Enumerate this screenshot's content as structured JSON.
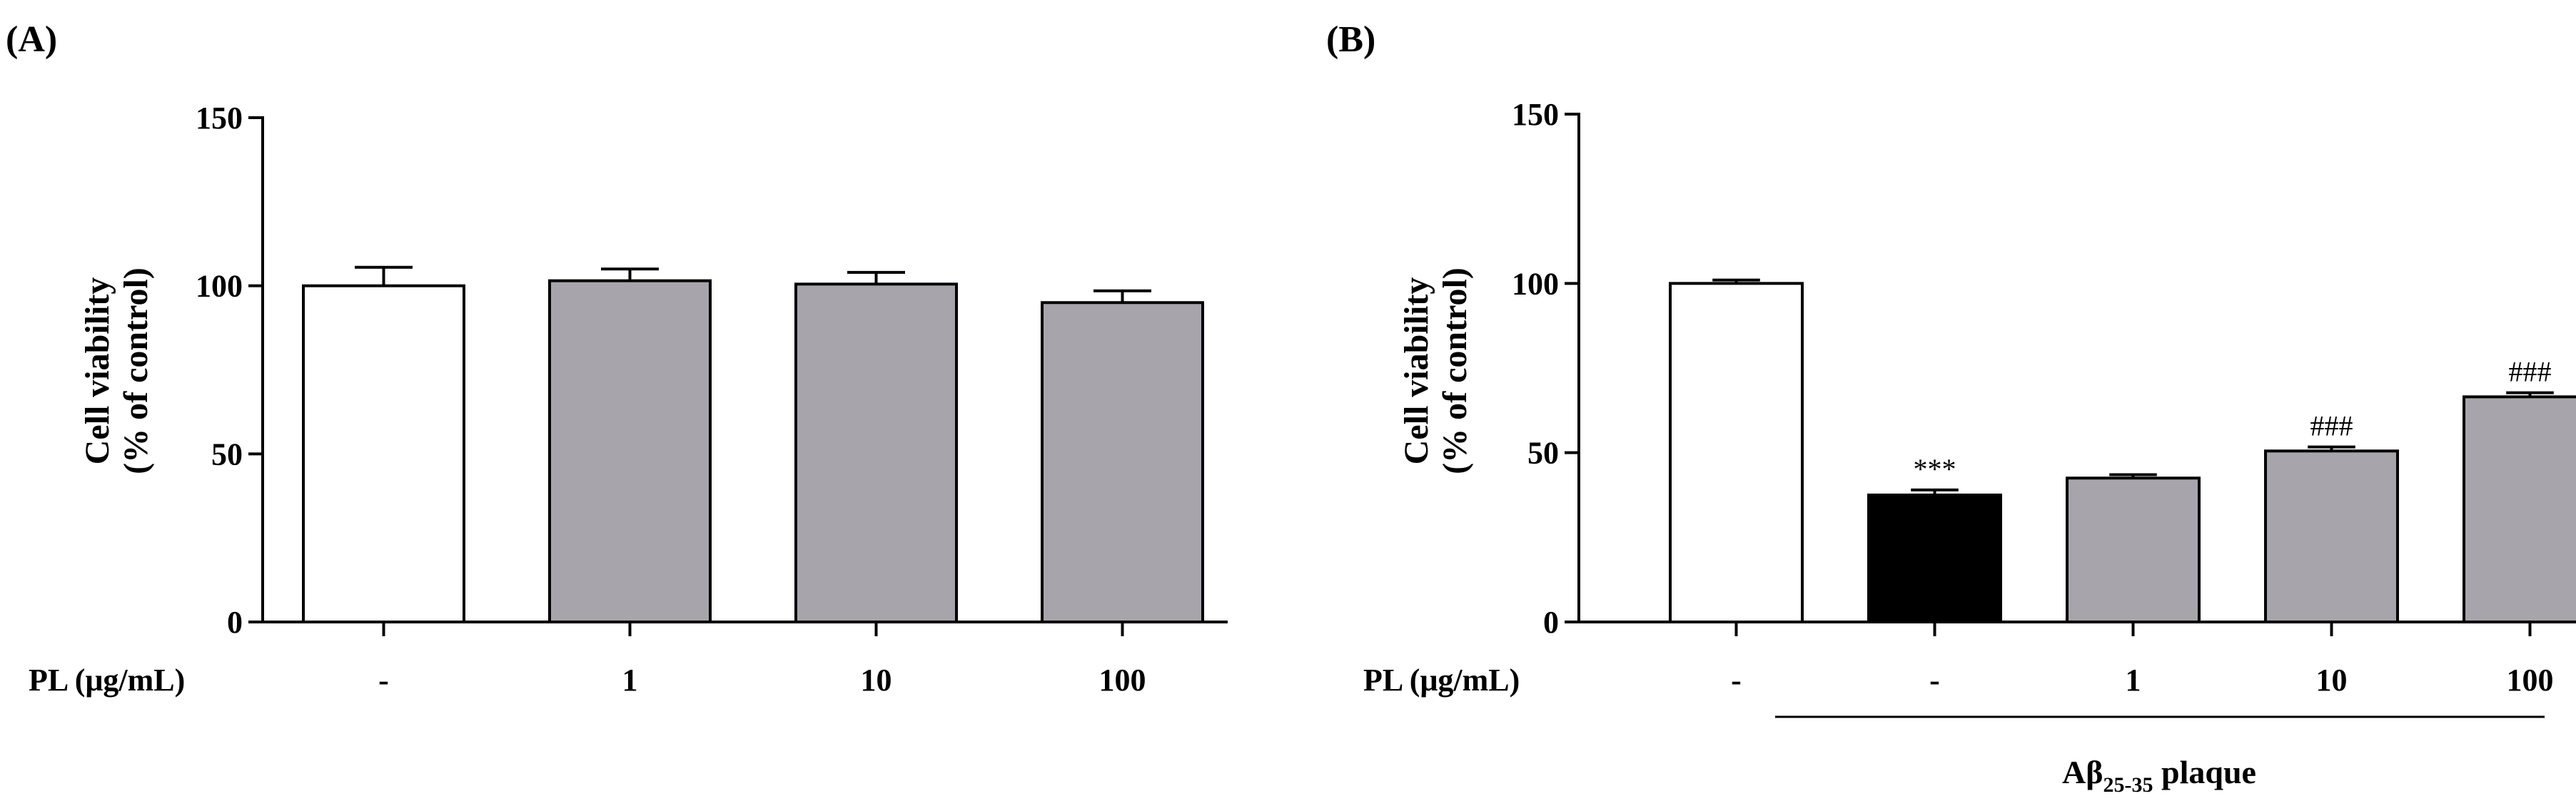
{
  "chart_data": [
    {
      "panel": "(A)",
      "type": "bar",
      "ylabel_line1": "Cell viability",
      "ylabel_line2": "(% of control)",
      "ylim": [
        0,
        150
      ],
      "yticks": [
        "0",
        "50",
        "100",
        "150"
      ],
      "row_label": "PL (μg/mL)",
      "categories": [
        "-",
        "1",
        "10",
        "100"
      ],
      "values": [
        100,
        101.5,
        100.5,
        95
      ],
      "errors": [
        5.5,
        3.5,
        3.5,
        3.5
      ],
      "fills": [
        "#ffffff",
        "#a7a5ab",
        "#a7a5ab",
        "#a7a5ab"
      ],
      "annotations": [
        "",
        "",
        "",
        ""
      ]
    },
    {
      "panel": "(B)",
      "type": "bar",
      "ylabel_line1": "Cell viability",
      "ylabel_line2": "(% of control)",
      "ylim": [
        0,
        150
      ],
      "yticks": [
        "0",
        "50",
        "100",
        "150"
      ],
      "row_label": "PL (μg/mL)",
      "categories": [
        "-",
        "-",
        "1",
        "10",
        "100"
      ],
      "values": [
        100,
        37.5,
        42.5,
        50.5,
        66.5
      ],
      "errors": [
        1.0,
        1.5,
        1.0,
        1.2,
        1.2
      ],
      "fills": [
        "#ffffff",
        "#000000",
        "#a7a5ab",
        "#a7a5ab",
        "#a7a5ab"
      ],
      "annotations": [
        "",
        "***",
        "",
        "###",
        "###"
      ],
      "group_label_main": "Aβ",
      "group_label_sub": "25-35",
      "group_label_rest": " plaque"
    }
  ]
}
